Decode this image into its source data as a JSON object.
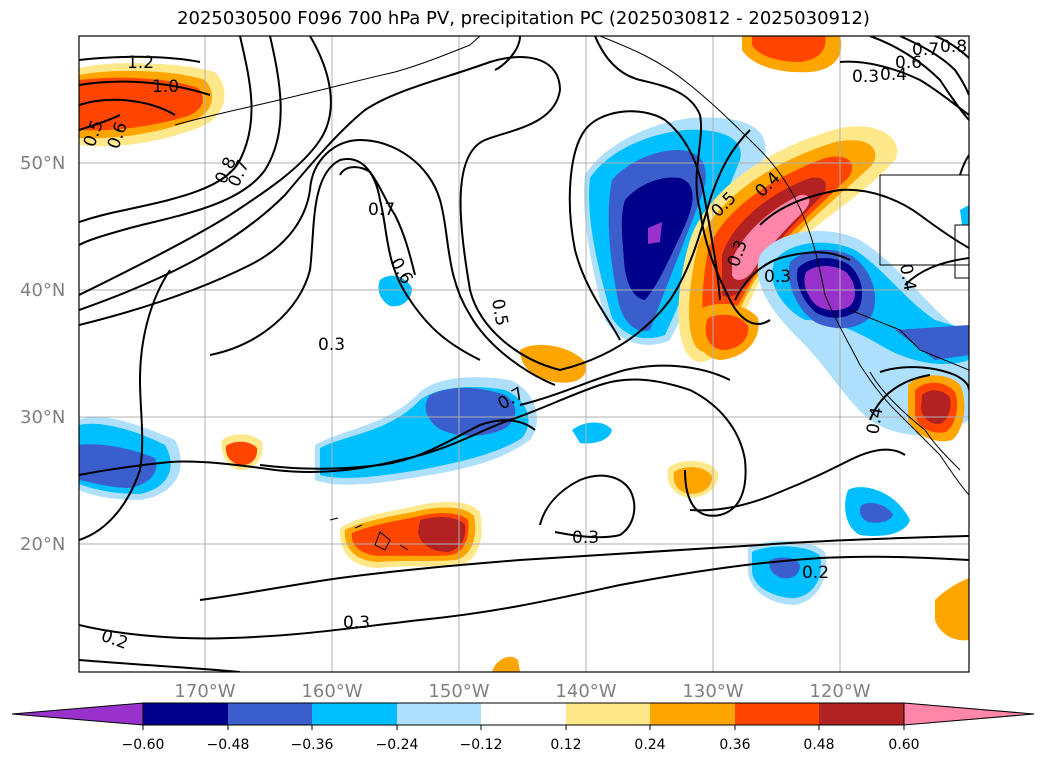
{
  "title": "2025030500 F096 700 hPa PV, precipitation PC (2025030812 - 2025030912)",
  "map": {
    "lat_labels": [
      "50°N",
      "40°N",
      "30°N",
      "20°N"
    ],
    "lon_labels": [
      "170°W",
      "160°W",
      "150°W",
      "140°W",
      "130°W",
      "120°W"
    ],
    "lat_range": [
      10,
      60
    ],
    "lon_range": [
      -180,
      -110
    ],
    "contour_labels": [
      "1.2",
      "1.0",
      "0.5",
      "0.6",
      "0.8",
      "0.7",
      "0.7",
      "0.6",
      "0.3",
      "0.5",
      "0.7",
      "0.3",
      "0.3",
      "0.2",
      "0.2",
      "0.5",
      "0.4",
      "0.3",
      "0.3",
      "0.4",
      "0.4",
      "0.3",
      "0.4",
      "0.6",
      "0.7",
      "0.8"
    ]
  },
  "colorbar": {
    "ticks": [
      "−0.60",
      "−0.48",
      "−0.36",
      "−0.24",
      "−0.12",
      "0.12",
      "0.24",
      "0.36",
      "0.48",
      "0.60"
    ],
    "colors": [
      "#9932cc",
      "#00008b",
      "#3a5fcd",
      "#00bfff",
      "#aee0fb",
      "#ffffff",
      "#ffe88a",
      "#ffa500",
      "#ff4500",
      "#b22222",
      "#ff86a8"
    ]
  },
  "fill_colors": {
    "neg1": "#aee0fb",
    "neg2": "#00bfff",
    "neg3": "#3a5fcd",
    "neg4": "#00008b",
    "neg5": "#9932cc",
    "pos1": "#ffe88a",
    "pos2": "#ffa500",
    "pos3": "#ff4500",
    "pos4": "#b22222",
    "pos5": "#ff86a8"
  }
}
